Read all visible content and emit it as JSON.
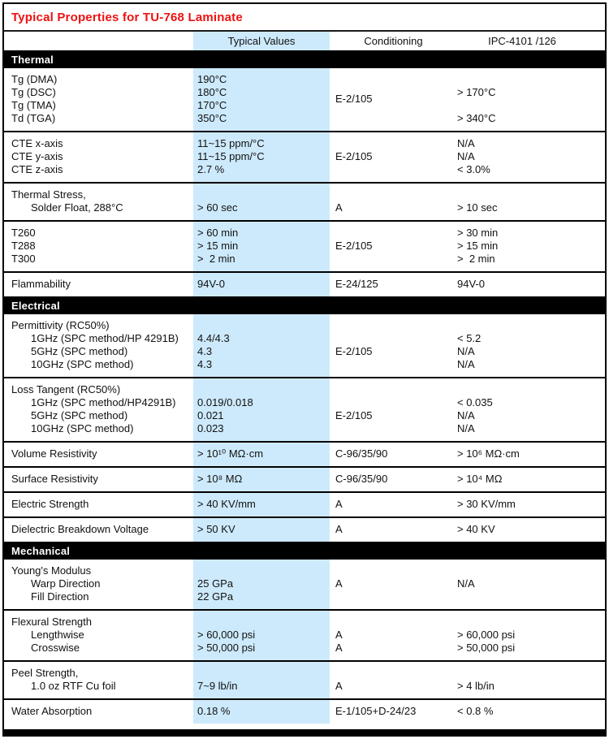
{
  "title": "Typical Properties for TU-768 Laminate",
  "columns": {
    "typical": "Typical Values",
    "conditioning": "Conditioning",
    "ipc": "IPC-4101 /126"
  },
  "colors": {
    "title_red": "#ee1111",
    "highlight_blue": "#cdeafc",
    "section_bar_bg": "#000000",
    "section_bar_text": "#ffffff",
    "border": "#000000"
  },
  "sections": [
    {
      "name": "Thermal",
      "groups": [
        {
          "property": [
            [
              "Tg (DMA)",
              0
            ],
            [
              "Tg (DSC)",
              0
            ],
            [
              "Tg (TMA)",
              0
            ],
            [
              "Td (TGA)",
              0
            ]
          ],
          "typical": [
            "190°C",
            "180°C",
            "170°C",
            "350°C"
          ],
          "cond_center": "E-2/105",
          "ipc": [
            "",
            "> 170°C",
            "",
            "> 340°C"
          ]
        },
        {
          "property": [
            [
              "CTE x-axis",
              0
            ],
            [
              "CTE y-axis",
              0
            ],
            [
              "CTE z-axis",
              0
            ]
          ],
          "typical": [
            "11~15 ppm/°C",
            "11~15 ppm/°C",
            "2.7 %"
          ],
          "cond_center": "E-2/105",
          "ipc": [
            "N/A",
            "N/A",
            "< 3.0%"
          ]
        },
        {
          "property": [
            [
              "Thermal Stress,",
              0
            ],
            [
              "Solder Float, 288°C",
              1
            ]
          ],
          "typical": [
            "",
            "> 60 sec"
          ],
          "cond": [
            "",
            "A"
          ],
          "ipc": [
            "",
            "> 10 sec"
          ]
        },
        {
          "property": [
            [
              "T260",
              0
            ],
            [
              "T288",
              0
            ],
            [
              "T300",
              0
            ]
          ],
          "typical": [
            "> 60 min",
            "> 15 min",
            ">  2 min"
          ],
          "cond_center": "E-2/105",
          "ipc": [
            "> 30 min",
            "> 15 min",
            ">  2 min"
          ]
        },
        {
          "property": [
            [
              "Flammability",
              0
            ]
          ],
          "typical": [
            "94V-0"
          ],
          "cond": [
            "E-24/125"
          ],
          "ipc": [
            "94V-0"
          ]
        }
      ]
    },
    {
      "name": "Electrical",
      "groups": [
        {
          "property": [
            [
              "Permittivity (RC50%)",
              0
            ],
            [
              "1GHz (SPC method/HP 4291B)",
              1
            ],
            [
              "5GHz (SPC method)",
              1
            ],
            [
              "10GHz (SPC method)",
              1
            ]
          ],
          "typical": [
            "",
            "4.4/4.3",
            "4.3",
            "4.3"
          ],
          "cond": [
            "",
            "",
            "E-2/105"
          ],
          "ipc": [
            "",
            "< 5.2",
            "N/A",
            "N/A"
          ]
        },
        {
          "property": [
            [
              "Loss Tangent (RC50%)",
              0
            ],
            [
              "1GHz (SPC method/HP4291B)",
              1
            ],
            [
              "5GHz (SPC method)",
              1
            ],
            [
              "10GHz (SPC method)",
              1
            ]
          ],
          "typical": [
            "",
            "0.019/0.018",
            "0.021",
            "0.023"
          ],
          "cond": [
            "",
            "",
            "E-2/105"
          ],
          "ipc": [
            "",
            "< 0.035",
            "N/A",
            "N/A"
          ]
        },
        {
          "property": [
            [
              "Volume Resistivity",
              0
            ]
          ],
          "typical": [
            "> 10¹⁰ MΩ·cm"
          ],
          "cond": [
            "C-96/35/90"
          ],
          "ipc": [
            "> 10⁶ MΩ·cm"
          ]
        },
        {
          "property": [
            [
              "Surface Resistivity",
              0
            ]
          ],
          "typical": [
            "> 10⁸ MΩ"
          ],
          "cond": [
            "C-96/35/90"
          ],
          "ipc": [
            "> 10⁴ MΩ"
          ]
        },
        {
          "property": [
            [
              "Electric Strength",
              0
            ]
          ],
          "typical": [
            "> 40 KV/mm"
          ],
          "cond": [
            "A"
          ],
          "ipc": [
            "> 30 KV/mm"
          ]
        },
        {
          "property": [
            [
              "Dielectric Breakdown Voltage",
              0
            ]
          ],
          "typical": [
            "> 50 KV"
          ],
          "cond": [
            "A"
          ],
          "ipc": [
            "> 40 KV"
          ]
        }
      ]
    },
    {
      "name": "Mechanical",
      "groups": [
        {
          "property": [
            [
              "Young's Modulus",
              0
            ],
            [
              "Warp Direction",
              1
            ],
            [
              "Fill Direction",
              1
            ]
          ],
          "typical": [
            "",
            "25 GPa",
            "22 GPa"
          ],
          "cond_center": "A",
          "ipc_center": "N/A"
        },
        {
          "property": [
            [
              "Flexural Strength",
              0
            ],
            [
              "Lengthwise",
              1
            ],
            [
              "Crosswise",
              1
            ]
          ],
          "typical": [
            "",
            "> 60,000 psi",
            "> 50,000 psi"
          ],
          "cond": [
            "",
            "A",
            "A"
          ],
          "ipc": [
            "",
            "> 60,000 psi",
            "> 50,000 psi"
          ]
        },
        {
          "property": [
            [
              "Peel Strength,",
              0
            ],
            [
              "1.0 oz RTF Cu foil",
              1
            ]
          ],
          "typical": [
            "",
            "7~9 lb/in"
          ],
          "cond": [
            "",
            "A"
          ],
          "ipc": [
            "",
            "> 4 lb/in"
          ]
        },
        {
          "property": [
            [
              "Water Absorption",
              0
            ]
          ],
          "typical": [
            "0.18 %"
          ],
          "cond": [
            "E-1/105+D-24/23"
          ],
          "ipc": [
            "< 0.8 %"
          ]
        }
      ]
    }
  ]
}
